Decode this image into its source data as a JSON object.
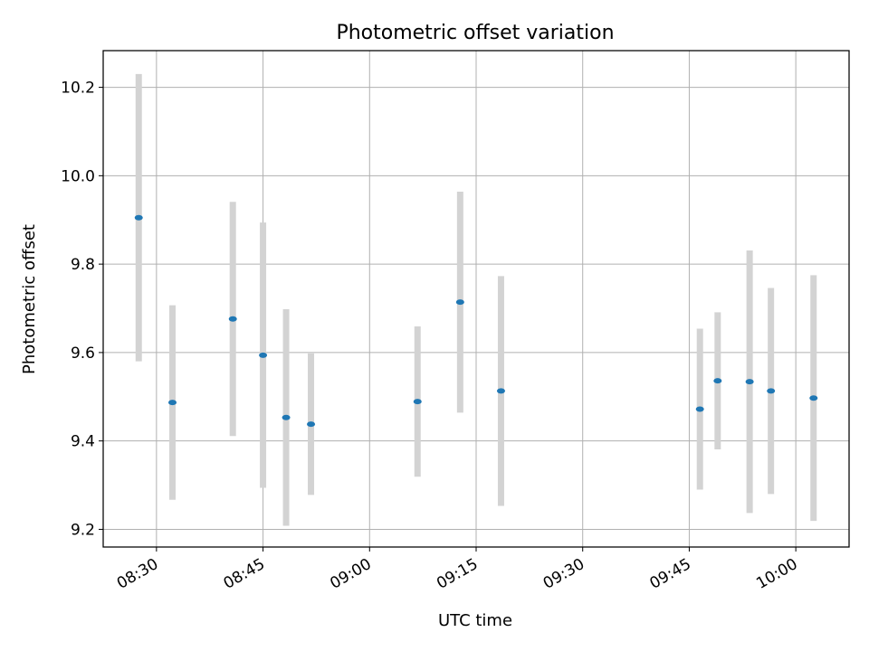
{
  "chart_data": {
    "type": "scatter",
    "title": "Photometric offset variation",
    "xlabel": "UTC time",
    "ylabel": "Photometric offset",
    "xlim": [
      "08:22:30",
      "10:07:30"
    ],
    "ylim": [
      9.16,
      10.283
    ],
    "grid": true,
    "xticks": [
      "08:30",
      "08:45",
      "09:00",
      "09:15",
      "09:30",
      "09:45",
      "10:00"
    ],
    "yticks": [
      9.2,
      9.4,
      9.6,
      9.8,
      10.0,
      10.2
    ],
    "ytick_labels": [
      "9.2",
      "9.4",
      "9.6",
      "9.8",
      "10.0",
      "10.2"
    ],
    "series": [
      {
        "color": "#1f77b4",
        "error_color": "#d3d3d3",
        "points": [
          {
            "x": "08:27:30",
            "y": 9.905,
            "err": 0.325
          },
          {
            "x": "08:32:15",
            "y": 9.487,
            "err": 0.22
          },
          {
            "x": "08:40:45",
            "y": 9.676,
            "err": 0.265
          },
          {
            "x": "08:45:00",
            "y": 9.594,
            "err": 0.3
          },
          {
            "x": "08:48:15",
            "y": 9.453,
            "err": 0.245
          },
          {
            "x": "08:51:45",
            "y": 9.438,
            "err": 0.16
          },
          {
            "x": "09:06:45",
            "y": 9.489,
            "err": 0.17
          },
          {
            "x": "09:12:45",
            "y": 9.714,
            "err": 0.25
          },
          {
            "x": "09:18:30",
            "y": 9.513,
            "err": 0.26
          },
          {
            "x": "09:46:30",
            "y": 9.472,
            "err": 0.182
          },
          {
            "x": "09:49:00",
            "y": 9.536,
            "err": 0.155
          },
          {
            "x": "09:53:30",
            "y": 9.534,
            "err": 0.297
          },
          {
            "x": "09:56:30",
            "y": 9.513,
            "err": 0.233
          },
          {
            "x": "10:02:30",
            "y": 9.497,
            "err": 0.278
          }
        ]
      }
    ]
  }
}
